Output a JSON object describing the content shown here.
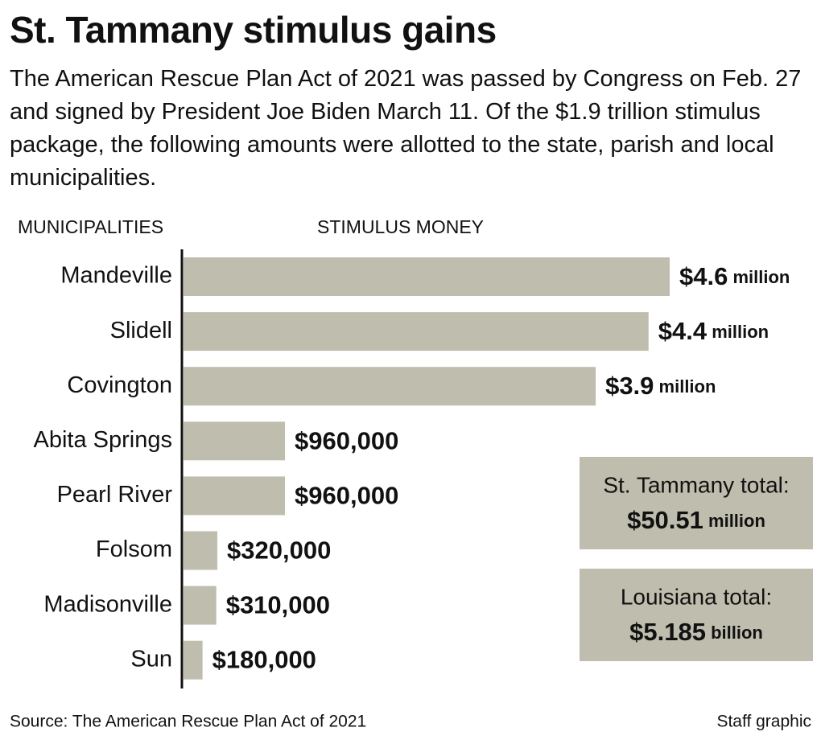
{
  "chart_data": {
    "type": "bar",
    "orientation": "horizontal",
    "title": "St. Tammany stimulus gains",
    "subtitle": "The American Rescue Plan Act of 2021 was passed by Congress on Feb. 27 and signed by President Joe Biden March 11. Of the $1.9 trillion stimulus package, the following amounts were allotted to the state, parish and local municipalities.",
    "category_label": "MUNICIPALITIES",
    "value_label": "STIMULUS MONEY",
    "categories": [
      "Mandeville",
      "Slidell",
      "Covington",
      "Abita Springs",
      "Pearl River",
      "Folsom",
      "Madisonville",
      "Sun"
    ],
    "values": [
      4600000,
      4400000,
      3900000,
      960000,
      960000,
      320000,
      310000,
      180000
    ],
    "value_labels": [
      "$4.6 million",
      "$4.4 million",
      "$3.9 million",
      "$960,000",
      "$960,000",
      "$320,000",
      "$310,000",
      "$180,000"
    ],
    "color": "#bfbdad",
    "annotations": [
      {
        "title": "St. Tammany total:",
        "text": "$50.51 million"
      },
      {
        "title": "Louisiana total:",
        "text": "$5.185 billion"
      }
    ],
    "source": "Source: The American Rescue Plan Act of 2021",
    "credit": "Staff graphic"
  }
}
